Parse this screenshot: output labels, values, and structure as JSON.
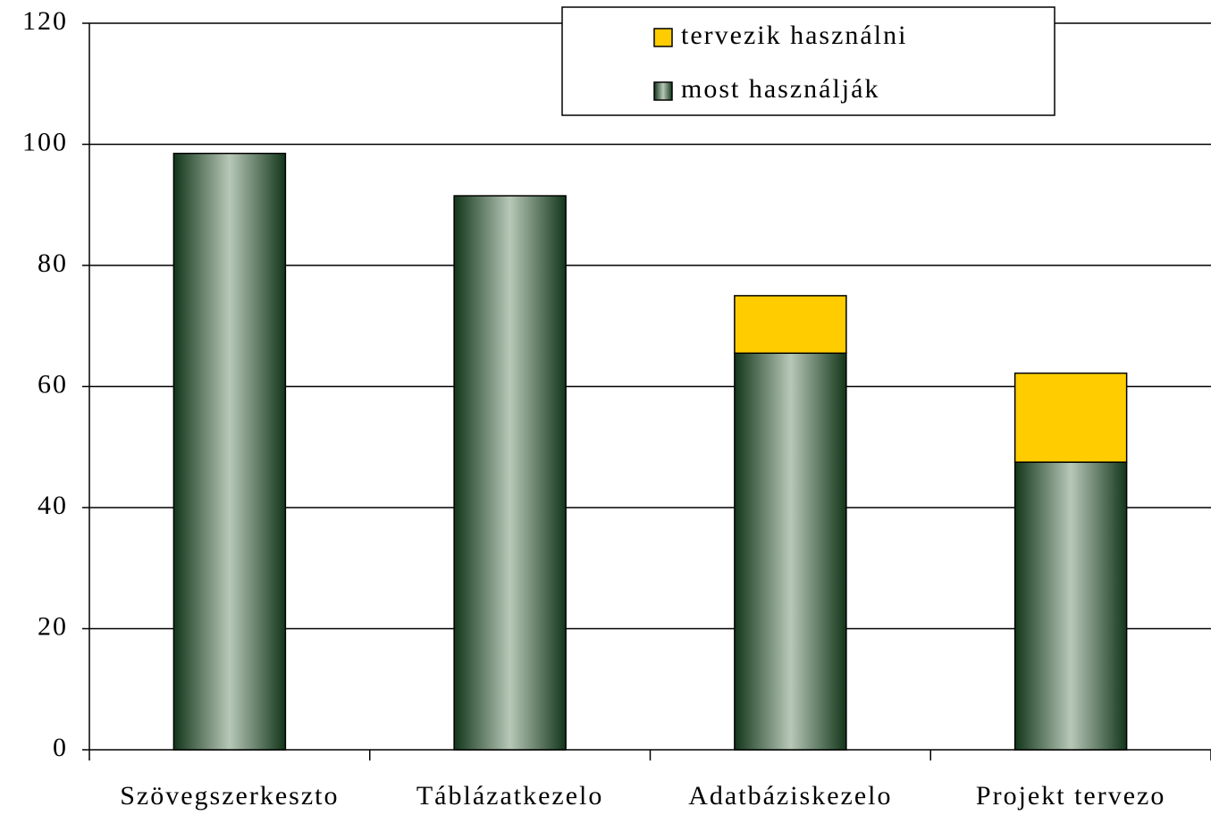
{
  "chart_data": {
    "type": "stacked_bar",
    "categories": [
      "Szövegszerkeszto",
      "Táblázatkezelo",
      "Adatbáziskezelo",
      "Projekt tervezo"
    ],
    "series": [
      {
        "name": "most használják",
        "color": "#12361a",
        "values": [
          98.5,
          91.5,
          65.5,
          47.5
        ]
      },
      {
        "name": "tervezik használni",
        "color": "#ffcc00",
        "values": [
          0,
          0,
          9.5,
          14.7
        ]
      }
    ],
    "ylim": [
      0,
      120
    ],
    "yticks": [
      0,
      20,
      40,
      60,
      80,
      100,
      120
    ],
    "grid": true
  }
}
